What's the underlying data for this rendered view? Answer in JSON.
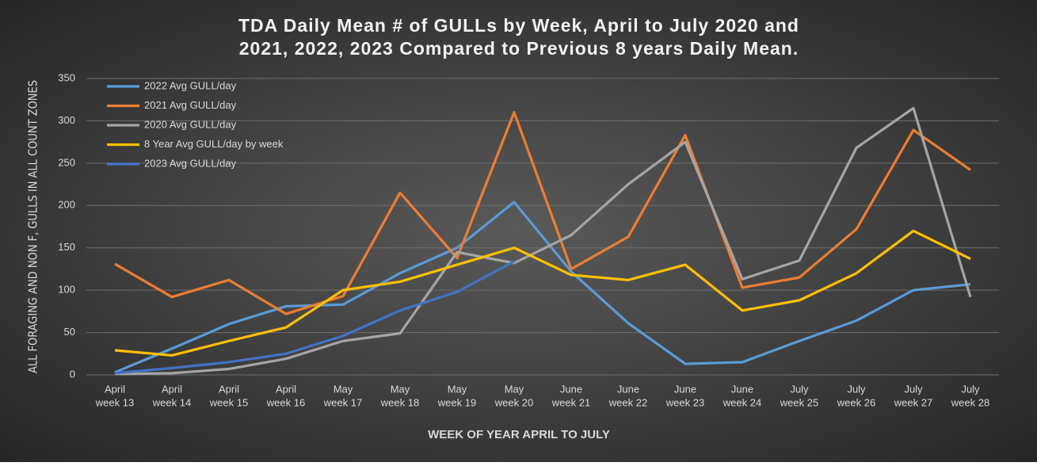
{
  "chart_data": {
    "type": "line",
    "title": [
      "TDA Daily Mean # of GULLs by Week, April to July 2020 and",
      "2021, 2022, 2023 Compared to Previous 8 years Daily Mean."
    ],
    "ylabel": "ALL FORAGING AND NON F, GULLS IN ALL COUNT ZONES",
    "xlabel": "WEEK OF YEAR APRIL TO JULY",
    "categories": [
      [
        "April",
        "week 13"
      ],
      [
        "April",
        "week 14"
      ],
      [
        "April",
        "week 15"
      ],
      [
        "April",
        "week 16"
      ],
      [
        "May",
        "week 17"
      ],
      [
        "May",
        "week 18"
      ],
      [
        "May",
        "week 19"
      ],
      [
        "May",
        "week 20"
      ],
      [
        "June",
        "week 21"
      ],
      [
        "June",
        "week 22"
      ],
      [
        "June",
        "week 23"
      ],
      [
        "June",
        "week 24"
      ],
      [
        "July",
        "week 25"
      ],
      [
        "July",
        "week 26"
      ],
      [
        "July",
        "week 27"
      ],
      [
        "July",
        "week 28"
      ]
    ],
    "series": [
      {
        "name": "2022 Avg GULL/day",
        "color": "#5b9bd5",
        "values": [
          3,
          31,
          60,
          81,
          83,
          120,
          150,
          204,
          122,
          61,
          13,
          15,
          40,
          64,
          100,
          107
        ]
      },
      {
        "name": "2021 Avg GULL/day",
        "color": "#ed7d31",
        "values": [
          131,
          92,
          112,
          72,
          93,
          215,
          138,
          310,
          125,
          163,
          283,
          103,
          115,
          172,
          289,
          242
        ]
      },
      {
        "name": "2020 Avg GULL/day",
        "color": "#a5a5a5",
        "values": [
          1,
          2,
          7,
          19,
          40,
          49,
          145,
          132,
          165,
          225,
          275,
          113,
          135,
          268,
          315,
          92
        ]
      },
      {
        "name": "8 Year Avg GULL/day by week",
        "color": "#ffc000",
        "values": [
          29,
          23,
          40,
          56,
          100,
          110,
          130,
          150,
          118,
          112,
          130,
          76,
          88,
          120,
          170,
          137
        ]
      },
      {
        "name": "2023 Avg GULL/day",
        "color": "#4472c4",
        "values": [
          2,
          8,
          15,
          25,
          46,
          76,
          98,
          134,
          null,
          null,
          null,
          null,
          null,
          null,
          null,
          null
        ]
      }
    ],
    "ylim": [
      0,
      350
    ],
    "yticks": [
      0,
      50,
      100,
      150,
      200,
      250,
      300,
      350
    ],
    "grid": true,
    "legend": "top-left"
  }
}
